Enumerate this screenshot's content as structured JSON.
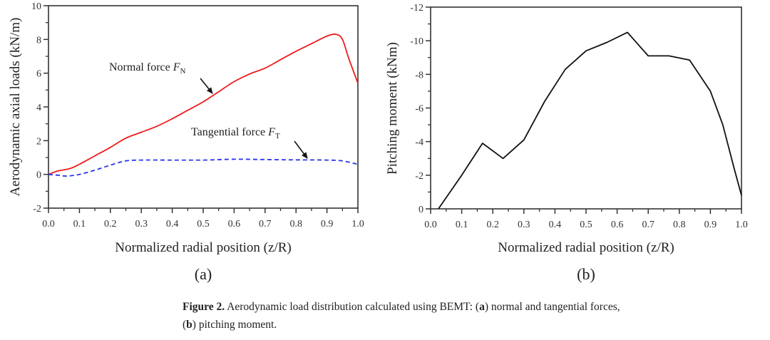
{
  "chart_data": [
    {
      "type": "line",
      "panel_label": "(a)",
      "title": "",
      "xlabel": "Normalized radial position (z/R)",
      "ylabel": "Aerodynamic axial loads (kN/m)",
      "xlim": [
        0.0,
        1.0
      ],
      "ylim": [
        -2,
        10
      ],
      "xticks": [
        "0.0",
        "0.1",
        "0.2",
        "0.3",
        "0.4",
        "0.5",
        "0.6",
        "0.7",
        "0.8",
        "0.9",
        "1.0"
      ],
      "yticks": [
        "-2",
        "0",
        "2",
        "4",
        "6",
        "8",
        "10"
      ],
      "grid": false,
      "series": [
        {
          "name": "Normal force F_N",
          "color": "#ee1c1c",
          "style": "solid",
          "x": [
            0,
            0.03,
            0.07,
            0.1,
            0.15,
            0.2,
            0.25,
            0.3,
            0.35,
            0.4,
            0.45,
            0.5,
            0.55,
            0.6,
            0.65,
            0.7,
            0.75,
            0.8,
            0.85,
            0.9,
            0.93,
            0.95,
            0.97,
            1.0
          ],
          "y": [
            0,
            0.2,
            0.35,
            0.6,
            1.1,
            1.6,
            2.15,
            2.5,
            2.85,
            3.3,
            3.8,
            4.3,
            4.9,
            5.5,
            5.95,
            6.3,
            6.8,
            7.3,
            7.75,
            8.2,
            8.3,
            8.0,
            6.9,
            5.4
          ]
        },
        {
          "name": "Tangential force F_T",
          "color": "#2a35e8",
          "style": "dashed",
          "x": [
            0,
            0.03,
            0.06,
            0.1,
            0.15,
            0.2,
            0.25,
            0.3,
            0.4,
            0.5,
            0.6,
            0.7,
            0.8,
            0.9,
            0.95,
            1.0
          ],
          "y": [
            0,
            -0.05,
            -0.1,
            0.0,
            0.25,
            0.55,
            0.8,
            0.85,
            0.85,
            0.85,
            0.9,
            0.88,
            0.86,
            0.85,
            0.8,
            0.6
          ]
        }
      ],
      "annotations": [
        {
          "text_main": "Normal force ",
          "symbol": "F",
          "subscript": "N",
          "points_to": {
            "x": 0.54,
            "y": 4.7
          }
        },
        {
          "text_main": "Tangential force ",
          "symbol": "F",
          "subscript": "T",
          "points_to": {
            "x": 0.84,
            "y": 0.86
          }
        }
      ]
    },
    {
      "type": "line",
      "panel_label": "(b)",
      "title": "",
      "xlabel": "Normalized radial position (z/R)",
      "ylabel": "Pitching moment (kNm)",
      "xlim": [
        0.0,
        1.0
      ],
      "ylim": [
        0,
        -12
      ],
      "y_inverted": true,
      "xticks": [
        "0.0",
        "0.1",
        "0.2",
        "0.3",
        "0.4",
        "0.5",
        "0.6",
        "0.7",
        "0.8",
        "0.9",
        "1.0"
      ],
      "yticks": [
        "0",
        "-2",
        "-4",
        "-6",
        "-8",
        "-10",
        "-12"
      ],
      "grid": false,
      "series": [
        {
          "name": "Pitching moment",
          "color": "#111111",
          "style": "solid",
          "x": [
            0.025,
            0.1,
            0.167,
            0.233,
            0.3,
            0.367,
            0.433,
            0.5,
            0.567,
            0.633,
            0.7,
            0.767,
            0.833,
            0.9,
            0.94,
            0.975,
            1.0
          ],
          "y": [
            0,
            -2.0,
            -3.9,
            -3.0,
            -4.1,
            -6.4,
            -8.3,
            -9.4,
            -9.9,
            -10.5,
            -9.1,
            -9.1,
            -8.85,
            -7.0,
            -5.0,
            -2.5,
            -0.8
          ]
        }
      ]
    }
  ],
  "caption": {
    "figure_label": "Figure 2.",
    "text_1": " Aerodynamic load distribution calculated using BEMT: (",
    "a_label": "a",
    "text_2": ") normal and tangential forces,",
    "text_3": "(",
    "b_label": "b",
    "text_4": ") pitching moment."
  }
}
